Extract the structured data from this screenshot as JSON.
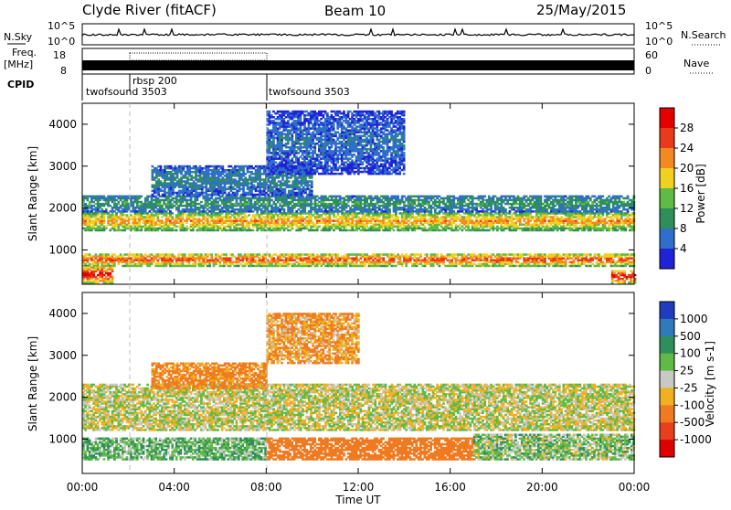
{
  "header": {
    "station": "Clyde River (fitACF)",
    "beam": "Beam 10",
    "date": "25/May/2015"
  },
  "strips": {
    "nsky_label": "N.Sky",
    "nsky_ticks": [
      "10^5",
      "10^0"
    ],
    "nsearch_label": "N.Search",
    "nsearch_ticks": [
      "10^5",
      "10^0"
    ],
    "freq_label_line1": "Freq.",
    "freq_label_line2": "[MHz]",
    "freq_ticks": [
      "18",
      "8"
    ],
    "nave_label": "Nave",
    "nave_ticks": [
      "60",
      "0"
    ],
    "cpid_label": "CPID",
    "cpid_entries": [
      "twofsound 3503",
      "rbsp 200",
      "twofsound 3503"
    ]
  },
  "chart_data": [
    {
      "type": "heatmap",
      "name": "power-panel",
      "ylabel": "Slant Range [km]",
      "xlabel": "Time UT",
      "x_ticks": [
        "00:00",
        "04:00",
        "08:00",
        "12:00",
        "16:00",
        "20:00",
        "00:00"
      ],
      "x_range_hours": [
        0,
        24
      ],
      "y_ticks": [
        1000,
        2000,
        3000,
        4000
      ],
      "ylim": [
        180,
        4500
      ],
      "colorbar": {
        "label": "Power [dB]",
        "ticks": [
          4,
          8,
          12,
          16,
          20,
          24,
          28
        ],
        "colors": [
          "#1f22d6",
          "#2f6fc9",
          "#2f8f5a",
          "#5fba46",
          "#f0d020",
          "#f38a20",
          "#ea3a1c",
          "#e40000"
        ]
      },
      "echo_bands": [
        {
          "range_km": [
            1450,
            1900
          ],
          "time_h": [
            0,
            24
          ],
          "power_db": 20
        },
        {
          "range_km": [
            600,
            900
          ],
          "time_h": [
            0,
            24
          ],
          "power_db": 24
        },
        {
          "range_km": [
            1900,
            2300
          ],
          "time_h": [
            0,
            24
          ],
          "power_db": 10
        },
        {
          "range_km": [
            2300,
            3000
          ],
          "time_h": [
            3,
            10
          ],
          "power_db": 8
        },
        {
          "range_km": [
            2800,
            4300
          ],
          "time_h": [
            8,
            14
          ],
          "power_db": 6
        },
        {
          "range_km": [
            200,
            600
          ],
          "time_h": [
            0,
            1.3
          ],
          "power_db": 28
        },
        {
          "range_km": [
            200,
            500
          ],
          "time_h": [
            23,
            24
          ],
          "power_db": 28
        }
      ]
    },
    {
      "type": "heatmap",
      "name": "velocity-panel",
      "ylabel": "Slant Range [km]",
      "xlabel": "Time UT",
      "x_ticks": [
        "00:00",
        "04:00",
        "08:00",
        "12:00",
        "16:00",
        "20:00",
        "00:00"
      ],
      "x_range_hours": [
        0,
        24
      ],
      "y_ticks": [
        1000,
        2000,
        3000,
        4000
      ],
      "ylim": [
        180,
        4500
      ],
      "colorbar": {
        "label": "Velocity [m s-1]",
        "ticks": [
          1000,
          500,
          100,
          25,
          -25,
          -100,
          -500,
          -1000
        ],
        "colors": [
          "#1e3dbd",
          "#2f7ab8",
          "#2f8f5a",
          "#5fba46",
          "#c8c8c4",
          "#f0b020",
          "#f07a20",
          "#e8401c",
          "#e00000"
        ]
      },
      "echo_bands": [
        {
          "range_km": [
            1200,
            2300
          ],
          "time_h": [
            0,
            24
          ],
          "velocity_ms": 0
        },
        {
          "range_km": [
            500,
            1000
          ],
          "time_h": [
            0,
            8
          ],
          "velocity_ms": 80
        },
        {
          "range_km": [
            500,
            1000
          ],
          "time_h": [
            8,
            17
          ],
          "velocity_ms": -300
        },
        {
          "range_km": [
            500,
            1100
          ],
          "time_h": [
            17,
            24
          ],
          "velocity_ms": 50
        },
        {
          "range_km": [
            2200,
            2800
          ],
          "time_h": [
            3,
            8
          ],
          "velocity_ms": -150
        },
        {
          "range_km": [
            2800,
            4000
          ],
          "time_h": [
            8,
            12
          ],
          "velocity_ms": -100
        }
      ]
    }
  ]
}
